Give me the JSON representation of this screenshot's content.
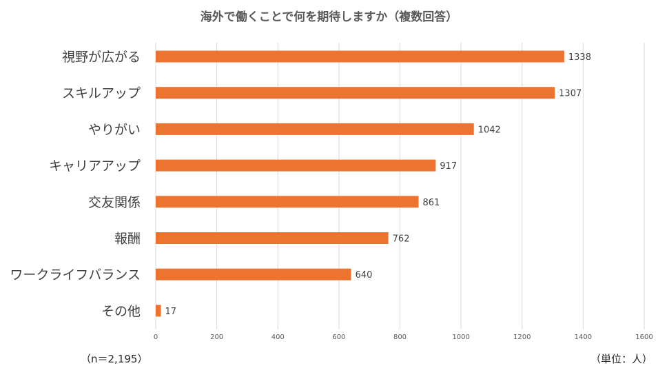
{
  "chart_data": {
    "type": "bar",
    "orientation": "horizontal",
    "title": "海外で働くことで何を期待しますか（複数回答）",
    "categories": [
      "視野が広がる",
      "スキルアップ",
      "やりがい",
      "キャリアアップ",
      "交友関係",
      "報酬",
      "ワークライフバランス",
      "その他"
    ],
    "series": [
      {
        "values": [
          1338,
          1307,
          1042,
          917,
          861,
          762,
          640,
          17
        ]
      }
    ],
    "xlim": [
      0,
      1600
    ],
    "x_ticks": [
      0,
      200,
      400,
      600,
      800,
      1000,
      1200,
      1400,
      1600
    ],
    "grid": true,
    "bar_color": "#ED7430",
    "grid_color": "#D9D9D9"
  },
  "notes": {
    "sample": "（n＝2,195）",
    "unit": "（単位：人）"
  }
}
